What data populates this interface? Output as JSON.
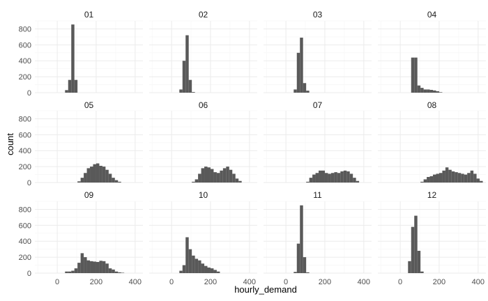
{
  "chart_data": {
    "type": "bar",
    "subtype": "faceted-histogram",
    "xlabel": "hourly_demand",
    "ylabel": "count",
    "xlim": [
      -115,
      440
    ],
    "ylim": [
      0,
      900
    ],
    "x_ticks": [
      0,
      200,
      400
    ],
    "y_ticks": [
      0,
      200,
      400,
      600,
      800
    ],
    "grid": true,
    "bin_width": 16,
    "colors": {
      "bar": "#595959",
      "grid": "#ebebeb"
    },
    "facets": [
      {
        "label": "01",
        "bins": [
          [
            40,
            32
          ],
          [
            56,
            160
          ],
          [
            72,
            855
          ],
          [
            88,
            160
          ]
        ]
      },
      {
        "label": "02",
        "bins": [
          [
            40,
            40
          ],
          [
            56,
            400
          ],
          [
            72,
            720
          ],
          [
            88,
            160
          ],
          [
            104,
            8
          ]
        ]
      },
      {
        "label": "03",
        "bins": [
          [
            40,
            40
          ],
          [
            56,
            500
          ],
          [
            72,
            690
          ],
          [
            88,
            120
          ],
          [
            104,
            25
          ]
        ]
      },
      {
        "label": "04",
        "bins": [
          [
            56,
            440
          ],
          [
            72,
            440
          ],
          [
            88,
            90
          ],
          [
            104,
            60
          ],
          [
            120,
            40
          ],
          [
            136,
            40
          ],
          [
            152,
            35
          ],
          [
            168,
            28
          ],
          [
            184,
            18
          ],
          [
            200,
            6
          ]
        ]
      },
      {
        "label": "05",
        "bins": [
          [
            104,
            15
          ],
          [
            120,
            60
          ],
          [
            136,
            120
          ],
          [
            152,
            180
          ],
          [
            168,
            200
          ],
          [
            184,
            230
          ],
          [
            200,
            240
          ],
          [
            216,
            210
          ],
          [
            232,
            200
          ],
          [
            248,
            160
          ],
          [
            264,
            110
          ],
          [
            280,
            60
          ],
          [
            296,
            30
          ],
          [
            312,
            10
          ]
        ]
      },
      {
        "label": "06",
        "bins": [
          [
            104,
            10
          ],
          [
            120,
            40
          ],
          [
            136,
            110
          ],
          [
            152,
            180
          ],
          [
            168,
            200
          ],
          [
            184,
            190
          ],
          [
            200,
            170
          ],
          [
            216,
            130
          ],
          [
            232,
            120
          ],
          [
            248,
            150
          ],
          [
            264,
            180
          ],
          [
            280,
            200
          ],
          [
            296,
            160
          ],
          [
            312,
            110
          ],
          [
            328,
            50
          ],
          [
            344,
            20
          ]
        ]
      },
      {
        "label": "07",
        "bins": [
          [
            104,
            10
          ],
          [
            120,
            60
          ],
          [
            136,
            100
          ],
          [
            152,
            120
          ],
          [
            168,
            150
          ],
          [
            184,
            150
          ],
          [
            200,
            120
          ],
          [
            216,
            110
          ],
          [
            232,
            120
          ],
          [
            248,
            130
          ],
          [
            264,
            120
          ],
          [
            280,
            140
          ],
          [
            296,
            150
          ],
          [
            312,
            140
          ],
          [
            328,
            110
          ],
          [
            344,
            60
          ],
          [
            360,
            20
          ]
        ]
      },
      {
        "label": "08",
        "bins": [
          [
            104,
            10
          ],
          [
            120,
            40
          ],
          [
            136,
            70
          ],
          [
            152,
            80
          ],
          [
            168,
            100
          ],
          [
            184,
            110
          ],
          [
            200,
            120
          ],
          [
            216,
            150
          ],
          [
            232,
            190
          ],
          [
            248,
            160
          ],
          [
            264,
            140
          ],
          [
            280,
            130
          ],
          [
            296,
            120
          ],
          [
            312,
            110
          ],
          [
            328,
            100
          ],
          [
            344,
            120
          ],
          [
            360,
            150
          ],
          [
            376,
            110
          ],
          [
            392,
            50
          ],
          [
            408,
            20
          ]
        ]
      },
      {
        "label": "09",
        "bins": [
          [
            40,
            20
          ],
          [
            56,
            20
          ],
          [
            72,
            30
          ],
          [
            88,
            60
          ],
          [
            104,
            130
          ],
          [
            120,
            250
          ],
          [
            136,
            200
          ],
          [
            152,
            160
          ],
          [
            168,
            150
          ],
          [
            184,
            145
          ],
          [
            200,
            140
          ],
          [
            216,
            155
          ],
          [
            232,
            150
          ],
          [
            248,
            120
          ],
          [
            264,
            60
          ],
          [
            280,
            45
          ],
          [
            296,
            20
          ],
          [
            312,
            10
          ],
          [
            328,
            5
          ]
        ]
      },
      {
        "label": "10",
        "bins": [
          [
            40,
            30
          ],
          [
            56,
            100
          ],
          [
            72,
            450
          ],
          [
            88,
            300
          ],
          [
            104,
            220
          ],
          [
            120,
            180
          ],
          [
            136,
            160
          ],
          [
            152,
            120
          ],
          [
            168,
            90
          ],
          [
            184,
            70
          ],
          [
            200,
            60
          ],
          [
            216,
            40
          ],
          [
            232,
            20
          ]
        ]
      },
      {
        "label": "11",
        "bins": [
          [
            40,
            15
          ],
          [
            56,
            370
          ],
          [
            72,
            850
          ],
          [
            88,
            200
          ],
          [
            104,
            10
          ]
        ]
      },
      {
        "label": "12",
        "bins": [
          [
            40,
            150
          ],
          [
            56,
            580
          ],
          [
            72,
            720
          ],
          [
            88,
            280
          ],
          [
            104,
            20
          ]
        ]
      }
    ]
  }
}
